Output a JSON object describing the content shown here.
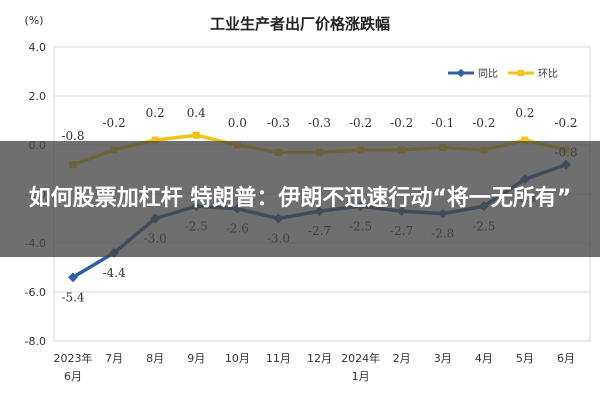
{
  "chart_data": {
    "type": "line",
    "title": "工业生产者出厂价格涨跌幅",
    "ylabel": "(%)",
    "ylim": [
      -8.0,
      4.0
    ],
    "yticks": [
      "4.0",
      "2.0",
      "0.0",
      "-2.0",
      "-4.0",
      "-6.0",
      "-8.0"
    ],
    "ytick_values": [
      4,
      2,
      0,
      -2,
      -4,
      -6,
      -8
    ],
    "categories": [
      [
        "2023年",
        "6月"
      ],
      [
        "7月"
      ],
      [
        "8月"
      ],
      [
        "9月"
      ],
      [
        "10月"
      ],
      [
        "11月"
      ],
      [
        "12月"
      ],
      [
        "2024年",
        "1月"
      ],
      [
        "2月"
      ],
      [
        "3月"
      ],
      [
        "4月"
      ],
      [
        "5月"
      ],
      [
        "6月"
      ]
    ],
    "series": [
      {
        "name": "同比",
        "color": "#2e5fa3",
        "values": [
          -5.4,
          -4.4,
          -3.0,
          -2.5,
          -2.6,
          -3.0,
          -2.7,
          -2.5,
          -2.7,
          -2.8,
          -2.5,
          -1.4,
          -0.8
        ],
        "labels": [
          "-5.4",
          "-4.4",
          "-3.0",
          "-2.5",
          "-2.6",
          "-3.0",
          "-2.7",
          "-2.5",
          "-2.7",
          "-2.8",
          "-2.5",
          "-1.4",
          "-0.8"
        ]
      },
      {
        "name": "环比",
        "color": "#f2c318",
        "values": [
          -0.8,
          -0.2,
          0.2,
          0.4,
          0.0,
          -0.3,
          -0.3,
          -0.2,
          -0.2,
          -0.1,
          -0.2,
          0.2,
          -0.2
        ],
        "labels": [
          "-0.8",
          "-0.2",
          "0.2",
          "0.4",
          "0.0",
          "-0.3",
          "-0.3",
          "-0.2",
          "-0.2",
          "-0.1",
          "-0.2",
          "0.2",
          "-0.2"
        ]
      }
    ],
    "grid": true,
    "legend": "top-right"
  },
  "overlay": {
    "headline": "如何股票加杠杆 特朗普：伊朗不迅速行动“将一无所有”"
  },
  "colors": {
    "grid": "#d9d9d9",
    "axis_text": "#333333",
    "title": "#222222",
    "overlay_bg": "#464646"
  }
}
